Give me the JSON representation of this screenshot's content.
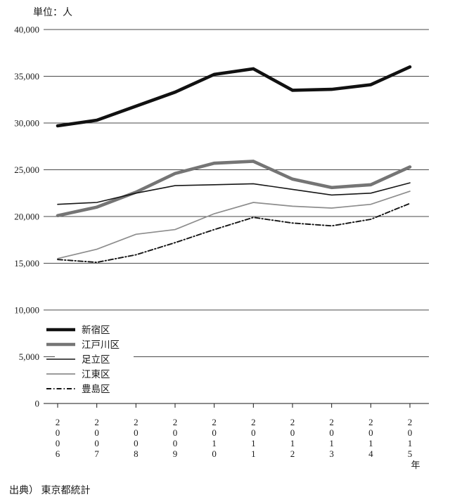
{
  "chart": {
    "unit_label": "単位：人",
    "source": "出典） 東京都統計",
    "axis_year_suffix": "年"
  },
  "chart_data": {
    "type": "line",
    "title": "",
    "unit_label": "単位：人",
    "xlabel": "年",
    "ylabel": "",
    "x": [
      "2006",
      "2007",
      "2008",
      "2009",
      "2010",
      "2011",
      "2012",
      "2013",
      "2014",
      "2015"
    ],
    "ylim": [
      0,
      40000
    ],
    "ytick_step": 5000,
    "ytick_labels": [
      "0",
      "5,000",
      "10,000",
      "15,000",
      "20,000",
      "25,000",
      "30,000",
      "35,000",
      "40,000"
    ],
    "grid": true,
    "legend_position": "inside-lower-left",
    "grid_color": "#4a4a4a",
    "series": [
      {
        "id": "shinjuku-ku",
        "name": "新宿区",
        "color": "#111111",
        "width": 4.6,
        "dash": null,
        "values": [
          29700,
          30300,
          31800,
          33300,
          35200,
          35800,
          33500,
          33600,
          34100,
          36000
        ]
      },
      {
        "id": "edogawa-ku",
        "name": "江戸川区",
        "color": "#757575",
        "width": 4.6,
        "dash": null,
        "values": [
          20100,
          21000,
          22600,
          24600,
          25700,
          25900,
          24000,
          23100,
          23400,
          25300
        ]
      },
      {
        "id": "adachi-ku",
        "name": "足立区",
        "color": "#161616",
        "width": 1.6,
        "dash": null,
        "values": [
          21300,
          21500,
          22500,
          23300,
          23400,
          23500,
          22900,
          22300,
          22500,
          23600
        ]
      },
      {
        "id": "koto-ku",
        "name": "江東区",
        "color": "#8d8d8d",
        "width": 1.7,
        "dash": null,
        "values": [
          15500,
          16500,
          18100,
          18600,
          20300,
          21500,
          21100,
          20900,
          21300,
          22700
        ]
      },
      {
        "id": "toshima-ku",
        "name": "豊島区",
        "color": "#141414",
        "width": 1.9,
        "dash": "7 3 1.5 3",
        "values": [
          15400,
          15100,
          15900,
          17200,
          18600,
          19900,
          19300,
          19000,
          19700,
          21400
        ]
      }
    ],
    "source": "出典） 東京都統計"
  }
}
